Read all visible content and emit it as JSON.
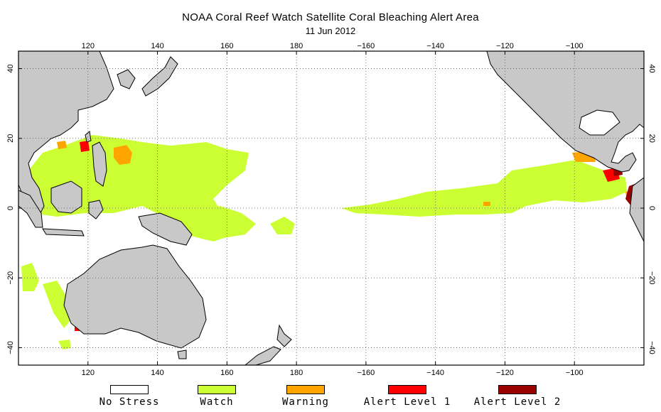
{
  "header": {
    "title": "NOAA Coral Reef Watch Satellite Coral Bleaching Alert Area",
    "date": "11 Jun 2012"
  },
  "map": {
    "lon_range": [
      100,
      280
    ],
    "lat_range": [
      -45,
      45
    ],
    "lon_ticks": [
      120,
      140,
      160,
      180,
      200,
      220,
      240,
      260
    ],
    "lon_tick_labels": [
      "120",
      "140",
      "160",
      "180",
      "−160",
      "−140",
      "−120",
      "−100"
    ],
    "lat_ticks": [
      40,
      20,
      0,
      -20,
      -40
    ],
    "lat_tick_labels": [
      "40",
      "20",
      "0",
      "−20",
      "−40"
    ],
    "gridlines": "dotted",
    "colors": {
      "land": "#c8c8c8",
      "no_stress": "#ffffff",
      "watch": "#ccff33",
      "warning": "#ffa500",
      "alert1": "#ff0000",
      "alert2": "#990000"
    }
  },
  "legend": [
    {
      "key": "no_stress",
      "label": "No Stress",
      "color": "#ffffff"
    },
    {
      "key": "watch",
      "label": "Watch",
      "color": "#ccff33"
    },
    {
      "key": "warning",
      "label": "Warning",
      "color": "#ffa500"
    },
    {
      "key": "alert1",
      "label": "Alert Level 1",
      "color": "#ff0000"
    },
    {
      "key": "alert2",
      "label": "Alert Level 2",
      "color": "#990000"
    }
  ]
}
